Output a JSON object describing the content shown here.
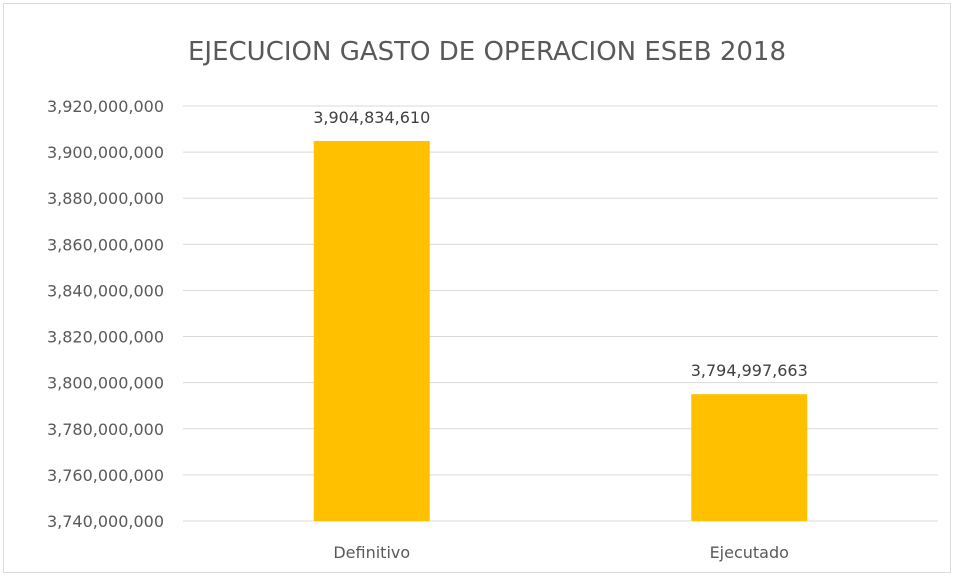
{
  "chart_data": {
    "type": "bar",
    "title": "EJECUCION GASTO DE OPERACION ESEB  2018",
    "categories": [
      "Definitivo",
      "Ejecutado"
    ],
    "values": [
      3904834610,
      3794997663
    ],
    "data_labels": [
      "3,904,834,610",
      "3,794,997,663"
    ],
    "ylim": [
      3740000000,
      3920000000
    ],
    "yticks": [
      3740000000,
      3760000000,
      3780000000,
      3800000000,
      3820000000,
      3840000000,
      3860000000,
      3880000000,
      3900000000,
      3920000000
    ],
    "ytick_labels": [
      "3,740,000,000",
      "3,760,000,000",
      "3,780,000,000",
      "3,800,000,000",
      "3,820,000,000",
      "3,840,000,000",
      "3,860,000,000",
      "3,880,000,000",
      "3,900,000,000",
      "3,920,000,000"
    ],
    "grid": true,
    "legend": "none",
    "bar_color": "#ffc000"
  }
}
